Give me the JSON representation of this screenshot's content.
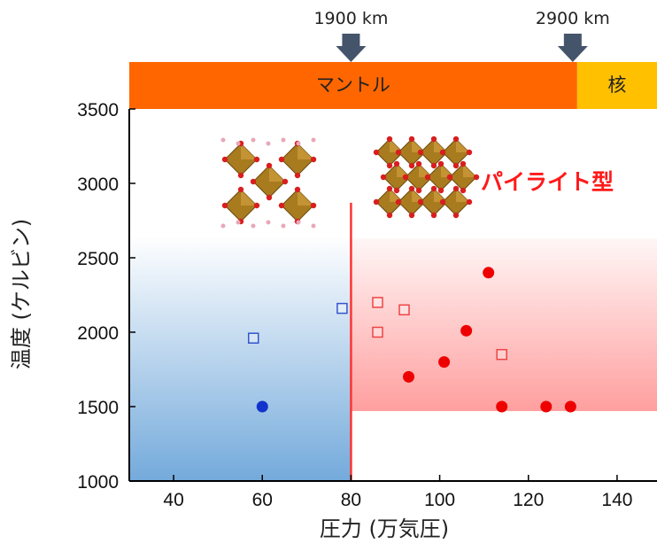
{
  "chart_data": {
    "type": "scatter",
    "xlabel": "圧力 (万気圧)",
    "ylabel": "温度 (ケルビン)",
    "xlim": [
      30,
      149
    ],
    "ylim": [
      1000,
      3500
    ],
    "xticks": [
      40,
      60,
      80,
      100,
      120,
      140
    ],
    "yticks": [
      1000,
      1500,
      2000,
      2500,
      3000,
      3500
    ],
    "grid": false,
    "boundary_pressure": 80,
    "boundary_top_temp": 2870,
    "regions": {
      "blue": {
        "x": [
          30,
          80
        ],
        "y": [
          1000,
          2650
        ],
        "color": "#5b9bd5"
      },
      "red": {
        "x": [
          80,
          149
        ],
        "y": [
          1470,
          2630
        ],
        "color": "#ff6b6b"
      }
    },
    "layers": [
      {
        "label": "マントル",
        "x_range": [
          30,
          131
        ],
        "color": "#ff6600"
      },
      {
        "label": "核",
        "x_range": [
          131,
          149
        ],
        "color": "#ffc000"
      }
    ],
    "depth_markers": [
      {
        "label": "1900 km",
        "x": 80
      },
      {
        "label": "2900 km",
        "x": 130
      }
    ],
    "annotation": "パイライト型",
    "series": [
      {
        "marker": "open-square",
        "color": "#3355cc",
        "points": [
          [
            58,
            1960
          ],
          [
            78,
            2160
          ]
        ]
      },
      {
        "marker": "filled-circle",
        "color": "#1133cc",
        "points": [
          [
            60,
            1500
          ]
        ]
      },
      {
        "marker": "open-square",
        "color": "#ee4444",
        "points": [
          [
            86,
            2200
          ],
          [
            86,
            2000
          ],
          [
            92,
            2150
          ],
          [
            114,
            1850
          ]
        ]
      },
      {
        "marker": "filled-circle",
        "color": "#ee0000",
        "points": [
          [
            93,
            1700
          ],
          [
            101,
            1800
          ],
          [
            106,
            2010
          ],
          [
            111,
            2400
          ],
          [
            114,
            1500
          ],
          [
            124,
            1500
          ],
          [
            129.5,
            1500
          ]
        ]
      }
    ]
  }
}
